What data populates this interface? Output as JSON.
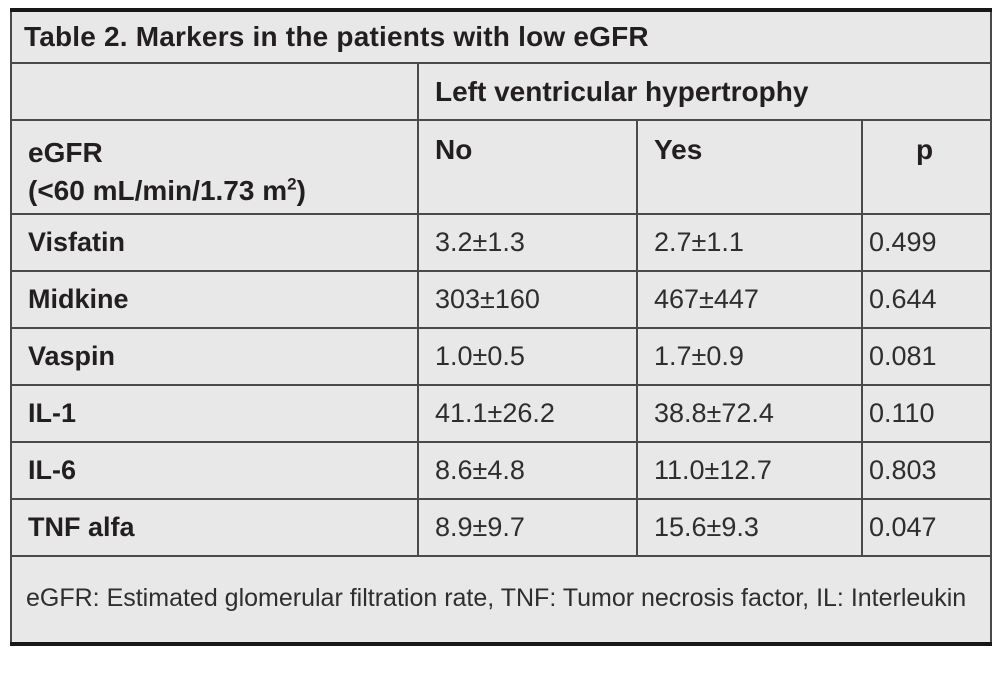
{
  "table": {
    "title": "Table 2. Markers in the patients with low eGFR",
    "group_header": "Left ventricular hypertrophy",
    "row_header": {
      "line1": "eGFR",
      "line2_prefix": "(<60 mL/min/1.73 m",
      "line2_sup": "2",
      "line2_suffix": ")"
    },
    "columns": [
      "No",
      "Yes",
      "p"
    ],
    "rows": [
      {
        "label": "Visfatin",
        "no": "3.2±1.3",
        "yes": "2.7±1.1",
        "p": "0.499"
      },
      {
        "label": "Midkine",
        "no": "303±160",
        "yes": "467±447",
        "p": "0.644"
      },
      {
        "label": "Vaspin",
        "no": "1.0±0.5",
        "yes": "1.7±0.9",
        "p": "0.081"
      },
      {
        "label": "IL-1",
        "no": "41.1±26.2",
        "yes": "38.8±72.4",
        "p": "0.110"
      },
      {
        "label": "IL-6",
        "no": "8.6±4.8",
        "yes": "11.0±12.7",
        "p": "0.803"
      },
      {
        "label": "TNF alfa",
        "no": "8.9±9.7",
        "yes": "15.6±9.3",
        "p": "0.047"
      }
    ],
    "footnote": "eGFR: Estimated glomerular filtration rate, TNF: Tumor necrosis factor, IL: Interleukin"
  },
  "colors": {
    "page_bg": "#ffffff",
    "cell_bg": "#e8e8e8",
    "border_inner": "#4a4a4a",
    "border_outer": "#181818",
    "text_strong": "#231f20",
    "text_normal": "#2e2e2e"
  }
}
